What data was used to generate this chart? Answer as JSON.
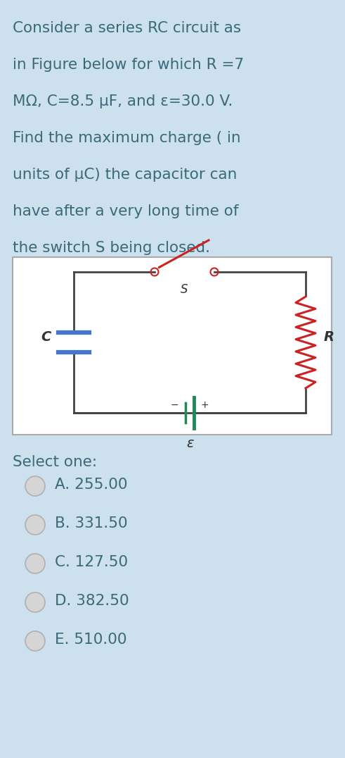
{
  "bg_color": "#cce0ed",
  "text_color": "#3a6a78",
  "question_text": "Consider a series RC circuit as\nin Figure below for which R =7\nMΩ, C=8.5 μF, and ε=30.0 V.\nFind the maximum charge ( in\nunits of μC) the capacitor can\nhave after a very long time of\nthe switch S being closed.",
  "question_fontsize": 15.5,
  "select_one_text": "Select one:",
  "select_one_fontsize": 15.5,
  "options": [
    {
      "label": "A. 255.00"
    },
    {
      "label": "B. 331.50"
    },
    {
      "label": "C. 127.50"
    },
    {
      "label": "D. 382.50"
    },
    {
      "label": "E. 510.00"
    }
  ],
  "option_fontsize": 15.5,
  "circuit_bg": "#ffffff",
  "wire_color": "#444444",
  "cap_color": "#4477cc",
  "res_color": "#cc2222",
  "bat_color": "#228855",
  "switch_color": "#cc2222"
}
